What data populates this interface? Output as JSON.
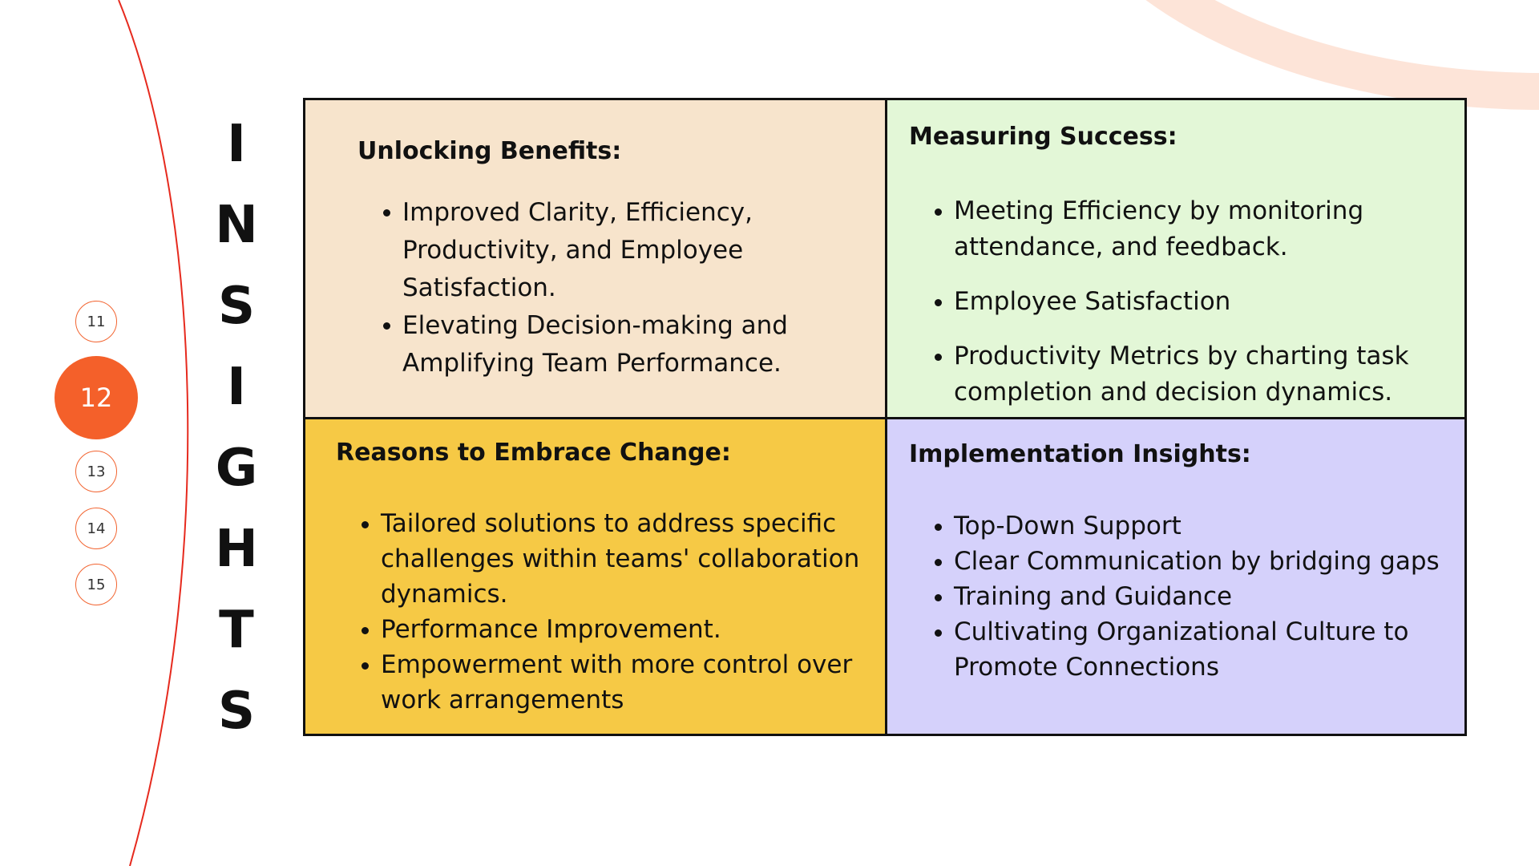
{
  "colors": {
    "accent": "#f4602a",
    "accent_line": "#e62a1e",
    "decor_arc": "#fde4d8",
    "quad_top_left": "#f7e4cc",
    "quad_top_right": "#e3f7d7",
    "quad_bottom_left": "#f6c945",
    "quad_bottom_right": "#d5d1fb",
    "border": "#111111"
  },
  "pagination": {
    "pages": [
      {
        "label": "11",
        "active": false
      },
      {
        "label": "12",
        "active": true
      },
      {
        "label": "13",
        "active": false
      },
      {
        "label": "14",
        "active": false
      },
      {
        "label": "15",
        "active": false
      }
    ]
  },
  "title": {
    "letters": [
      "I",
      "N",
      "S",
      "I",
      "G",
      "H",
      "T",
      "S"
    ]
  },
  "quadrants": {
    "top_left": {
      "heading": "Unlocking Benefits:",
      "items": [
        "Improved Clarity, Efficiency, Productivity, and Employee Satisfaction.",
        "Elevating Decision-making and Amplifying Team Performance."
      ]
    },
    "top_right": {
      "heading": "Measuring Success:",
      "items": [
        "Meeting Efficiency by monitoring attendance, and feedback.",
        "Employee Satisfaction",
        "Productivity Metrics by charting task completion and decision dynamics."
      ]
    },
    "bottom_left": {
      "heading": "Reasons to Embrace Change:",
      "items": [
        "Tailored solutions to address specific challenges within teams' collaboration dynamics.",
        "Performance Improvement.",
        "Empowerment with more control over work arrangements"
      ]
    },
    "bottom_right": {
      "heading": "Implementation Insights:",
      "items": [
        "Top-Down Support",
        "Clear Communication by bridging gaps",
        "Training and Guidance",
        "Cultivating Organizational Culture to Promote Connections"
      ]
    }
  }
}
